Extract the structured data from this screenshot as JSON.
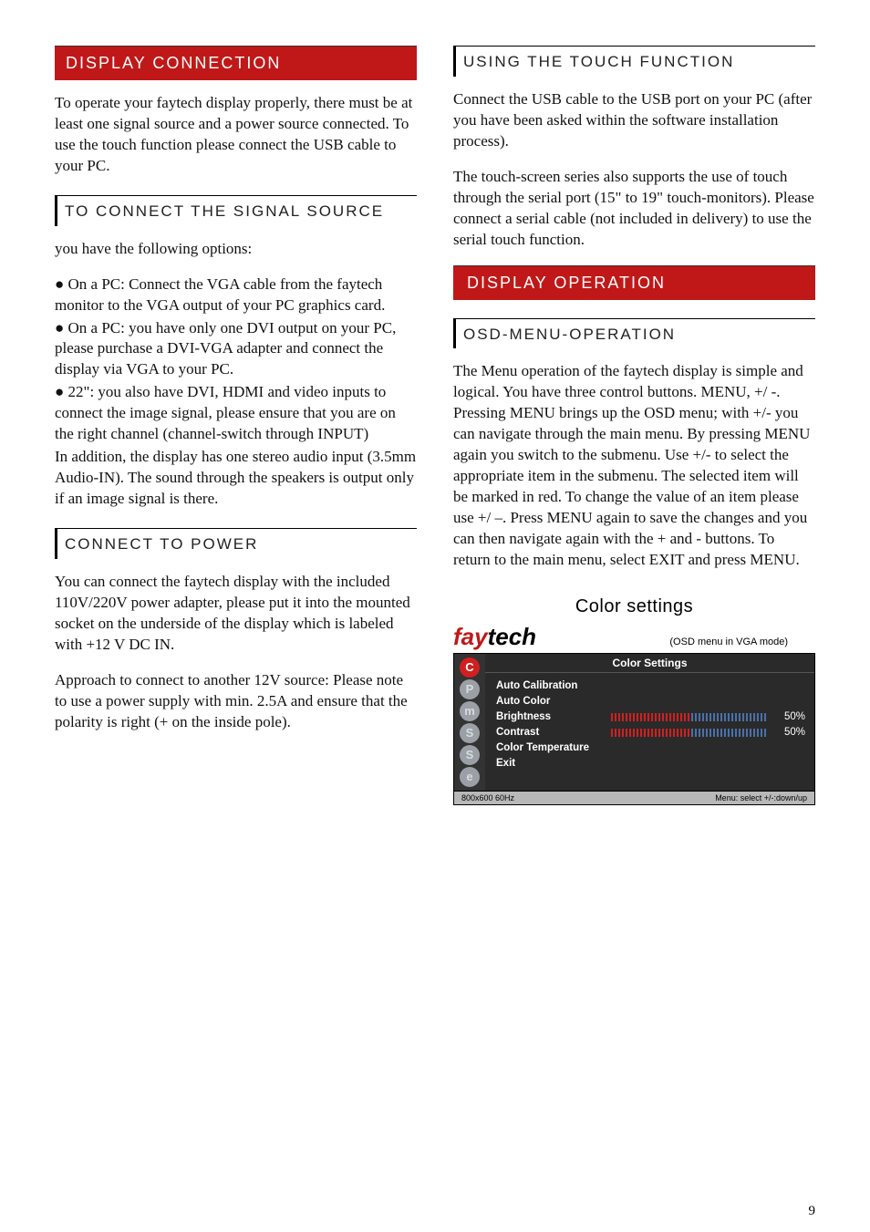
{
  "page_number": "9",
  "left": {
    "section1": {
      "title": "DISPLAY CONNECTION",
      "p1": "To operate your faytech display properly, there must be at least one signal source and a power source connected. To use the touch function please connect the USB cable to your PC."
    },
    "sub1": {
      "title": "TO CONNECT THE SIGNAL SOURCE",
      "intro": "you have the following options:",
      "b1": "● On a PC: Connect the VGA cable from the faytech monitor to the VGA output of your PC graphics card.",
      "b2": "●   On a PC: you have only one DVI output on your PC, please purchase a DVI-VGA adapter and connect the display via VGA to your PC.",
      "b3": "● 22\": you also have DVI, HDMI and video inputs to connect the image signal, please ensure that you are on the right channel (channel-switch through INPUT)",
      "p2": "In addition, the display has one stereo audio input (3.5mm Audio-IN). The sound through the speakers is output only if an image signal is there."
    },
    "sub2": {
      "title": "CONNECT TO POWER",
      "p1": "You can connect the faytech display with the included 110V/220V power adapter, please put it into the mounted socket on the underside of the display which is labeled with +12 V DC IN.",
      "p2": "Approach to connect to another 12V source: Please note to use a power supply with min. 2.5A and ensure that the polarity is right (+ on the inside pole)."
    }
  },
  "right": {
    "sub1": {
      "title": "USING THE TOUCH FUNCTION",
      "p1": "Connect the USB cable to the USB port on your PC (after you have been asked within the software installation process).",
      "p2": "The touch-screen series also supports the use of touch through the serial port (15\" to 19\" touch-monitors). Please connect a serial cable (not included in delivery) to use the serial touch function."
    },
    "section2": {
      "title": "DISPLAY OPERATION"
    },
    "sub2": {
      "title": "OSD-MENU-OPERATION",
      "p1": "The Menu operation of the faytech display is simple and logical. You have three control buttons. MENU, +/ -. Pressing MENU brings up the OSD menu; with +/- you can navigate through the main menu. By pressing MENU again you switch to the submenu. Use +/- to select the appropriate item in the submenu. The selected item will be marked in red. To change the value of an item please use +/ –. Press MENU again to save the changes and you can then navigate again with the + and - buttons. To return to the main menu, select EXIT and press MENU."
    }
  },
  "osd": {
    "caption": "Color settings",
    "mode": "(OSD menu in VGA mode)",
    "logo_fay": "fay",
    "logo_tech": "tech",
    "panel_title": "Color Settings",
    "side_icons": [
      {
        "letter": "C",
        "bg": "#d02020",
        "fg": "#ffffff"
      },
      {
        "letter": "P",
        "bg": "#9aa0a6",
        "fg": "#d8dce0"
      },
      {
        "letter": "m",
        "bg": "#9aa0a6",
        "fg": "#d8dce0"
      },
      {
        "letter": "S",
        "bg": "#9aa0a6",
        "fg": "#d8dce0"
      },
      {
        "letter": "S",
        "bg": "#9aa0a6",
        "fg": "#d8dce0"
      },
      {
        "letter": "e",
        "bg": "#9aa0a6",
        "fg": "#d8dce0"
      }
    ],
    "items": [
      {
        "label": "Auto Calibration",
        "type": "text"
      },
      {
        "label": "Auto Color",
        "type": "text"
      },
      {
        "label": "Brightness",
        "type": "bar",
        "value": 50,
        "display": "50%"
      },
      {
        "label": "Contrast",
        "type": "bar",
        "value": 50,
        "display": "50%"
      },
      {
        "label": "Color Temperature",
        "type": "text"
      },
      {
        "label": "Exit",
        "type": "text"
      }
    ],
    "footer_left": "800x600 60Hz",
    "footer_right": "Menu: select +/-:down/up"
  },
  "colors": {
    "accent_red": "#c01818",
    "osd_bg": "#2a2a2a",
    "osd_footer_bg": "#b8b8b8"
  }
}
